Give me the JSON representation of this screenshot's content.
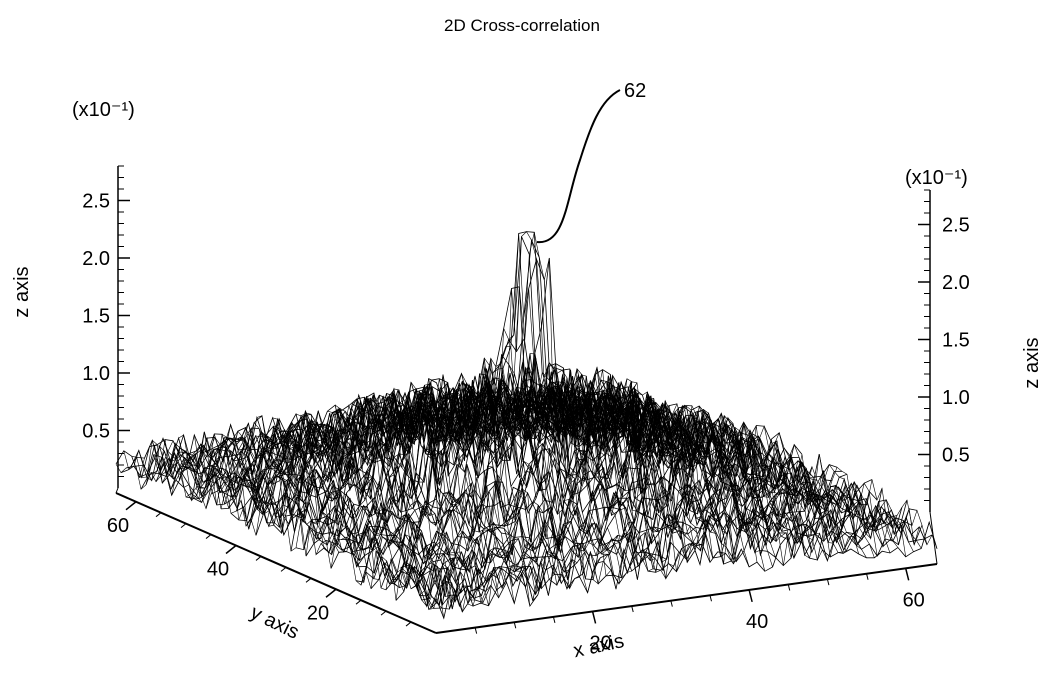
{
  "chart_data": {
    "type": "surface",
    "title": "2D Cross-correlation",
    "xlabel": "x axis",
    "ylabel": "y axis",
    "zlabel": "z axis",
    "z_multiplier_label": "(x10⁻¹)",
    "xlim": [
      0,
      64
    ],
    "ylim": [
      0,
      64
    ],
    "zlim": [
      0,
      2.8
    ],
    "x_ticks": [
      "20",
      "40",
      "60"
    ],
    "y_ticks": [
      "20",
      "40",
      "60"
    ],
    "z_ticks": [
      "0.5",
      "1.0",
      "1.5",
      "2.0",
      "2.5"
    ],
    "grid": false,
    "peak": {
      "label": "62",
      "x": 32,
      "y": 32,
      "z": 2.5
    }
  }
}
